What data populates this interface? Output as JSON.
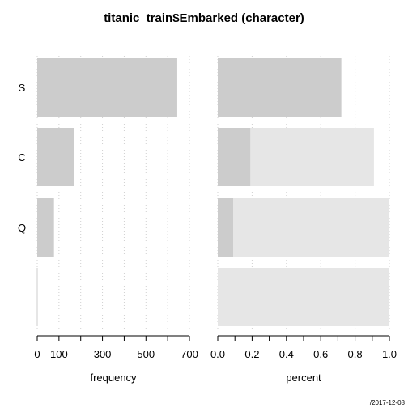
{
  "title": "titanic_train$Embarked (character)",
  "footer": "/2017-12-08",
  "colors": {
    "bar": "#cccccc",
    "bar_light": "#e6e6e6",
    "grid": "#d0d0d0",
    "axis": "#000000"
  },
  "chart_data": [
    {
      "type": "bar",
      "orientation": "horizontal",
      "categories": [
        "S",
        "C",
        "Q",
        ""
      ],
      "values": [
        644,
        168,
        77,
        0
      ],
      "xlabel": "frequency",
      "ylabel": "",
      "xlim": [
        0,
        700
      ],
      "xticks": [
        0,
        100,
        300,
        500,
        700
      ],
      "grid": true
    },
    {
      "type": "bar",
      "orientation": "horizontal",
      "stacked": true,
      "categories": [
        "S",
        "C",
        "Q",
        ""
      ],
      "series": [
        {
          "values": [
            0.72,
            0.19,
            0.09,
            0.0
          ]
        },
        {
          "values": [
            0.0,
            0.72,
            0.91,
            1.0
          ]
        }
      ],
      "xlabel": "percent",
      "ylabel": "",
      "xlim": [
        0,
        1
      ],
      "xticks": [
        "0.0",
        "0.2",
        "0.4",
        "0.6",
        "0.8",
        "1.0"
      ],
      "grid": true
    }
  ]
}
